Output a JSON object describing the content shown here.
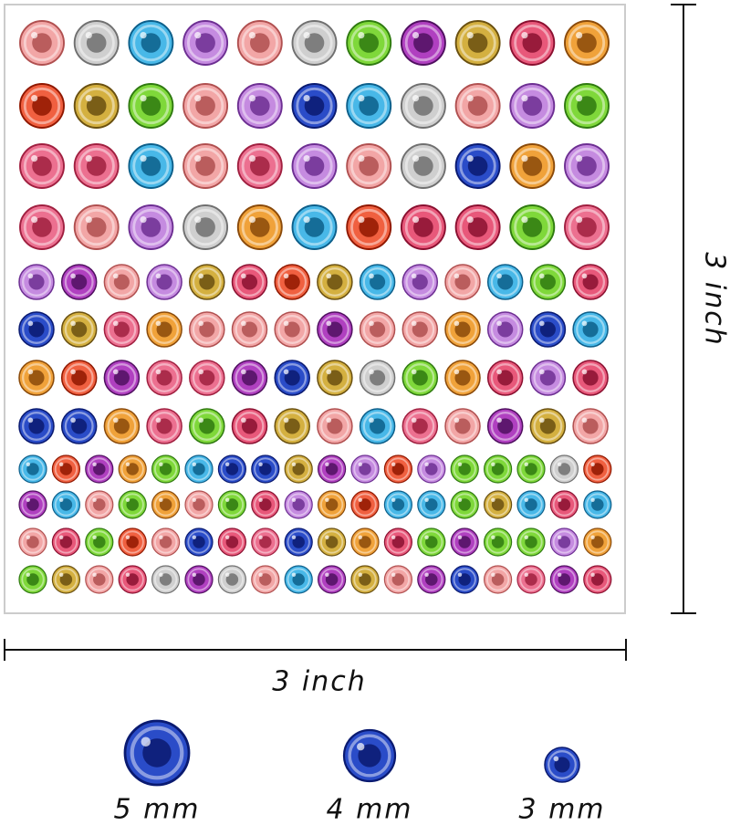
{
  "dimensions": {
    "height_label": "3 inch",
    "width_label": "3 inch"
  },
  "sizes": [
    {
      "label": "5 mm"
    },
    {
      "label": "4 mm"
    },
    {
      "label": "3 mm"
    }
  ]
}
